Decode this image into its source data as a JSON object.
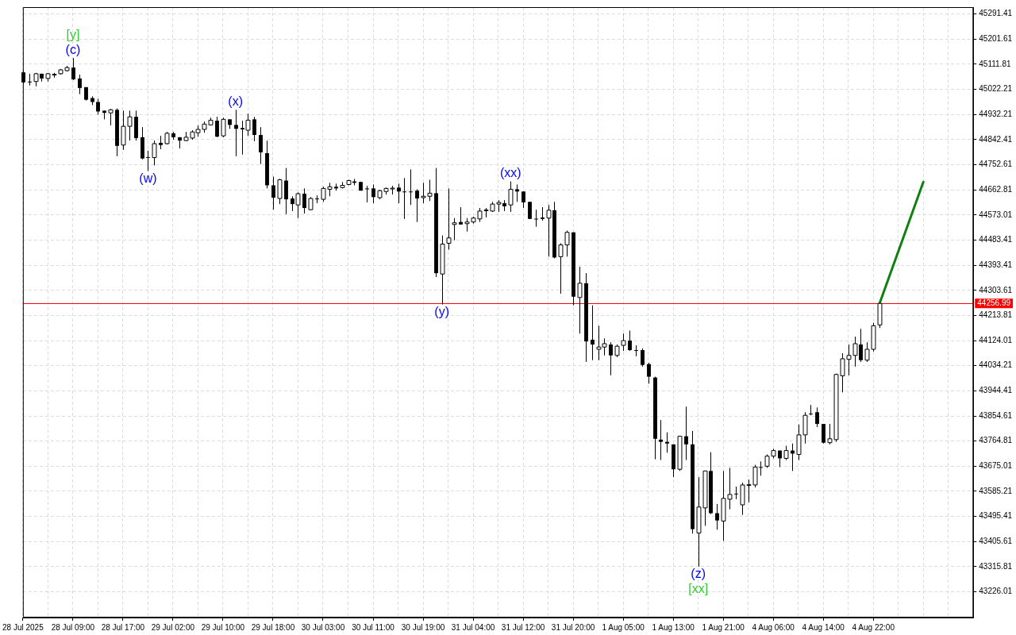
{
  "chart_data": {
    "type": "candlestick",
    "categories": [
      "28 Jul 2025",
      null,
      null,
      null,
      null,
      null,
      null,
      null,
      "28 Jul 09:00",
      null,
      null,
      null,
      null,
      null,
      null,
      null,
      "28 Jul 17:00",
      null,
      null,
      null,
      null,
      null,
      null,
      null,
      "29 Jul 02:00",
      null,
      null,
      null,
      null,
      null,
      null,
      null,
      "29 Jul 10:00",
      null,
      null,
      null,
      null,
      null,
      null,
      null,
      "29 Jul 18:00",
      null,
      null,
      null,
      null,
      null,
      null,
      null,
      "30 Jul 03:00",
      null,
      null,
      null,
      null,
      null,
      null,
      null,
      "30 Jul 11:00",
      null,
      null,
      null,
      null,
      null,
      null,
      null,
      "30 Jul 19:00",
      null,
      null,
      null,
      null,
      null,
      null,
      null,
      "31 Jul 04:00",
      null,
      null,
      null,
      null,
      null,
      null,
      null,
      "31 Jul 12:00",
      null,
      null,
      null,
      null,
      null,
      null,
      null,
      "31 Jul 20:00",
      null,
      null,
      null,
      null,
      null,
      null,
      null,
      "1 Aug 05:00",
      null,
      null,
      null,
      null,
      null,
      null,
      null,
      "1 Aug 13:00",
      null,
      null,
      null,
      null,
      null,
      null,
      null,
      "1 Aug 21:00",
      null,
      null,
      null,
      null,
      null,
      null,
      null,
      "4 Aug 06:00",
      null,
      null,
      null,
      null,
      null,
      null,
      null,
      "4 Aug 14:00",
      null,
      null,
      null,
      null,
      null,
      null,
      null,
      "4 Aug 22:00",
      null,
      null,
      null,
      null,
      null,
      null,
      null,
      null,
      null,
      null,
      null,
      null,
      null,
      null,
      null,
      null
    ],
    "ohlc": [
      [
        45083,
        45089,
        45041,
        45047
      ],
      [
        45050,
        45078,
        45036,
        45047
      ],
      [
        45050,
        45081,
        45033,
        45078
      ],
      [
        45078,
        45078,
        45050,
        45061
      ],
      [
        45061,
        45081,
        45050,
        45078
      ],
      [
        45075,
        45081,
        45064,
        45076
      ],
      [
        45078,
        45095,
        45075,
        45092
      ],
      [
        45089,
        45106,
        45086,
        45100
      ],
      [
        45100,
        45134,
        45055,
        45058
      ],
      [
        45061,
        45075,
        45005,
        45027
      ],
      [
        45030,
        45030,
        44982,
        44985
      ],
      [
        44991,
        44997,
        44966,
        44977
      ],
      [
        44977,
        44988,
        44932,
        44943
      ],
      [
        44946,
        44946,
        44915,
        44938
      ],
      [
        44938,
        44952,
        44893,
        44949
      ],
      [
        44949,
        44954,
        44783,
        44820
      ],
      [
        44823,
        44946,
        44806,
        44890
      ],
      [
        44890,
        44946,
        44839,
        44924
      ],
      [
        44924,
        44946,
        44839,
        44848
      ],
      [
        44851,
        44887,
        44772,
        44775
      ],
      [
        44780,
        44803,
        44730,
        44778
      ],
      [
        44778,
        44839,
        44750,
        44828
      ],
      [
        44831,
        44856,
        44808,
        44823
      ],
      [
        44828,
        44870,
        44825,
        44865
      ],
      [
        44865,
        44870,
        44842,
        44851
      ],
      [
        44851,
        44851,
        44811,
        44839
      ],
      [
        44839,
        44870,
        44837,
        44851
      ],
      [
        44848,
        44876,
        44842,
        44870
      ],
      [
        44867,
        44893,
        44853,
        44879
      ],
      [
        44879,
        44907,
        44867,
        44898
      ],
      [
        44895,
        44921,
        44893,
        44912
      ],
      [
        44910,
        44924,
        44851,
        44853
      ],
      [
        44856,
        44921,
        44851,
        44915
      ],
      [
        44915,
        44915,
        44881,
        44895
      ],
      [
        44895,
        44949,
        44783,
        44881
      ],
      [
        44884,
        44910,
        44789,
        44879
      ],
      [
        44876,
        44935,
        44856,
        44912
      ],
      [
        44915,
        44924,
        44837,
        44859
      ],
      [
        44859,
        44887,
        44755,
        44797
      ],
      [
        44794,
        44839,
        44668,
        44679
      ],
      [
        44679,
        44710,
        44592,
        44635
      ],
      [
        44632,
        44702,
        44612,
        44699
      ],
      [
        44696,
        44741,
        44576,
        44629
      ],
      [
        44632,
        44640,
        44587,
        44612
      ],
      [
        44609,
        44654,
        44562,
        44649
      ],
      [
        44649,
        44668,
        44578,
        44598
      ],
      [
        44592,
        44637,
        44590,
        44632
      ],
      [
        44632,
        44643,
        44615,
        44629
      ],
      [
        44629,
        44674,
        44620,
        44668
      ],
      [
        44665,
        44688,
        44640,
        44674
      ],
      [
        44674,
        44685,
        44660,
        44668
      ],
      [
        44671,
        44691,
        44668,
        44679
      ],
      [
        44682,
        44699,
        44679,
        44696
      ],
      [
        44693,
        44702,
        44679,
        44688
      ],
      [
        44691,
        44692,
        44660,
        44660
      ],
      [
        44668,
        44677,
        44618,
        44665
      ],
      [
        44668,
        44682,
        44615,
        44637
      ],
      [
        44635,
        44663,
        44629,
        44660
      ],
      [
        44657,
        44671,
        44646,
        44668
      ],
      [
        44668,
        44677,
        44646,
        44669
      ],
      [
        44671,
        44685,
        44615,
        44657
      ],
      [
        44657,
        44705,
        44559,
        44656
      ],
      [
        44657,
        44736,
        44609,
        44656
      ],
      [
        44660,
        44665,
        44548,
        44632
      ],
      [
        44635,
        44688,
        44615,
        44640
      ],
      [
        44640,
        44699,
        44623,
        44651
      ],
      [
        44651,
        44741,
        44351,
        44365
      ],
      [
        44362,
        44500,
        44253,
        44469
      ],
      [
        44472,
        44668,
        44449,
        44491
      ],
      [
        44539,
        44562,
        44483,
        44545
      ],
      [
        44548,
        44601,
        44539,
        44539
      ],
      [
        44542,
        44562,
        44514,
        44548
      ],
      [
        44548,
        44567,
        44542,
        44562
      ],
      [
        44559,
        44598,
        44548,
        44587
      ],
      [
        44590,
        44598,
        44564,
        44591
      ],
      [
        44587,
        44620,
        44584,
        44612
      ],
      [
        44612,
        44626,
        44584,
        44618
      ],
      [
        44615,
        44626,
        44587,
        44604
      ],
      [
        44609,
        44693,
        44584,
        44665
      ],
      [
        44665,
        44682,
        44620,
        44657
      ],
      [
        44657,
        44657,
        44598,
        44618
      ],
      [
        44620,
        44620,
        44559,
        44559
      ],
      [
        44560,
        44592,
        44531,
        44559
      ],
      [
        44564,
        44601,
        44553,
        44559
      ],
      [
        44562,
        44609,
        44424,
        44590
      ],
      [
        44590,
        44620,
        44418,
        44421
      ],
      [
        44424,
        44472,
        44292,
        44466
      ],
      [
        44466,
        44517,
        44424,
        44511
      ],
      [
        44511,
        44511,
        44250,
        44281
      ],
      [
        44278,
        44388,
        44149,
        44329
      ],
      [
        44329,
        44365,
        44048,
        44121
      ],
      [
        44127,
        44250,
        44054,
        44110
      ],
      [
        44093,
        44177,
        44054,
        44101
      ],
      [
        44101,
        44132,
        44071,
        44113
      ],
      [
        44110,
        44118,
        44000,
        44071
      ],
      [
        44071,
        44110,
        44065,
        44104
      ],
      [
        44107,
        44149,
        44087,
        44124
      ],
      [
        44124,
        44160,
        44087,
        44090
      ],
      [
        44090,
        44107,
        44068,
        44089
      ],
      [
        44090,
        44096,
        44031,
        44037
      ],
      [
        44040,
        44045,
        43970,
        43995
      ],
      [
        43992,
        43995,
        43700,
        43773
      ],
      [
        43770,
        43840,
        43697,
        43762
      ],
      [
        43762,
        43796,
        43723,
        43756
      ],
      [
        43753,
        43753,
        43636,
        43664
      ],
      [
        43664,
        43784,
        43658,
        43782
      ],
      [
        43782,
        43888,
        43697,
        43753
      ],
      [
        43753,
        43801,
        43434,
        43450
      ],
      [
        43436,
        43636,
        43316,
        43529
      ],
      [
        43526,
        43658,
        43462,
        43658
      ],
      [
        43658,
        43725,
        43504,
        43507
      ],
      [
        43507,
        43540,
        43448,
        43481
      ],
      [
        43479,
        43658,
        43408,
        43560
      ],
      [
        43557,
        43669,
        43521,
        43574
      ],
      [
        43577,
        43602,
        43557,
        43575
      ],
      [
        43537,
        43616,
        43501,
        43608
      ],
      [
        43608,
        43627,
        43546,
        43609
      ],
      [
        43608,
        43680,
        43599,
        43672
      ],
      [
        43672,
        43692,
        43641,
        43671
      ],
      [
        43675,
        43717,
        43669,
        43711
      ],
      [
        43711,
        43737,
        43703,
        43731
      ],
      [
        43731,
        43731,
        43672,
        43703
      ],
      [
        43703,
        43748,
        43697,
        43731
      ],
      [
        43731,
        43756,
        43658,
        43720
      ],
      [
        43717,
        43824,
        43697,
        43787
      ],
      [
        43787,
        43868,
        43756,
        43857
      ],
      [
        43863,
        43894,
        43857,
        43861
      ],
      [
        43868,
        43885,
        43815,
        43826
      ],
      [
        43826,
        43826,
        43756,
        43759
      ],
      [
        43759,
        43826,
        43753,
        43773
      ],
      [
        43770,
        44006,
        43762,
        44003
      ],
      [
        43998,
        44079,
        43939,
        44059
      ],
      [
        44057,
        44110,
        44000,
        44071
      ],
      [
        44071,
        44138,
        44031,
        44113
      ],
      [
        44110,
        44166,
        44048,
        44054
      ],
      [
        44054,
        44118,
        44048,
        44093
      ],
      [
        44093,
        44188,
        44085,
        44177
      ],
      [
        44180,
        44259,
        44169,
        44257
      ],
      null,
      null,
      null,
      null,
      null,
      null,
      null,
      null,
      null,
      null,
      null,
      null,
      null,
      null,
      null
    ],
    "series": [
      {
        "type": "line",
        "color": "#108010",
        "values": [
          null,
          null,
          null,
          null,
          null,
          null,
          null,
          null,
          null,
          null,
          null,
          null,
          null,
          null,
          null,
          null,
          null,
          null,
          null,
          null,
          null,
          null,
          null,
          null,
          null,
          null,
          null,
          null,
          null,
          null,
          null,
          null,
          null,
          null,
          null,
          null,
          null,
          null,
          null,
          null,
          null,
          null,
          null,
          null,
          null,
          null,
          null,
          null,
          null,
          null,
          null,
          null,
          null,
          null,
          null,
          null,
          null,
          null,
          null,
          null,
          null,
          null,
          null,
          null,
          null,
          null,
          null,
          null,
          null,
          null,
          null,
          null,
          null,
          null,
          null,
          null,
          null,
          null,
          null,
          null,
          null,
          null,
          null,
          null,
          null,
          null,
          null,
          null,
          null,
          null,
          null,
          null,
          null,
          null,
          null,
          null,
          null,
          null,
          null,
          null,
          null,
          null,
          null,
          null,
          null,
          null,
          null,
          null,
          null,
          null,
          null,
          null,
          null,
          null,
          null,
          null,
          null,
          null,
          null,
          null,
          null,
          null,
          null,
          null,
          null,
          null,
          null,
          null,
          null,
          null,
          null,
          null,
          null,
          null,
          null,
          null,
          null,
          44257,
          null,
          null,
          null,
          null,
          null,
          null,
          44691,
          null,
          null,
          null,
          null,
          null,
          null,
          null,
          null
        ]
      }
    ],
    "ylim": [
      43134,
      45316
    ],
    "yticks": [
      45291.41,
      45201.61,
      45111.81,
      45022.21,
      44932.21,
      44842.41,
      44752.61,
      44662.81,
      44573.01,
      44483.41,
      44393.41,
      44303.61,
      44213.81,
      44124.01,
      44034.21,
      43944.41,
      43854.61,
      43764.81,
      43675.01,
      43585.21,
      43495.41,
      43405.61,
      43315.81,
      43226.01
    ],
    "ref_lines": [
      {
        "axis": "y",
        "value": 44256.99,
        "label": "44256.99",
        "color": "#ff0000"
      }
    ],
    "annotations": [
      {
        "text": "(c)",
        "y": 45134
      },
      {
        "text": "[y]",
        "y": 45134
      },
      {
        "text": "(w)",
        "y": 44730
      },
      {
        "text": "(x)",
        "y": 44949
      },
      {
        "text": "(xx)",
        "y": 44693
      },
      {
        "text": "(y)",
        "y": 44253
      },
      {
        "text": "(z)",
        "y": 43316
      },
      {
        "text": "[xx]",
        "y": 43316
      }
    ],
    "grid": true
  }
}
